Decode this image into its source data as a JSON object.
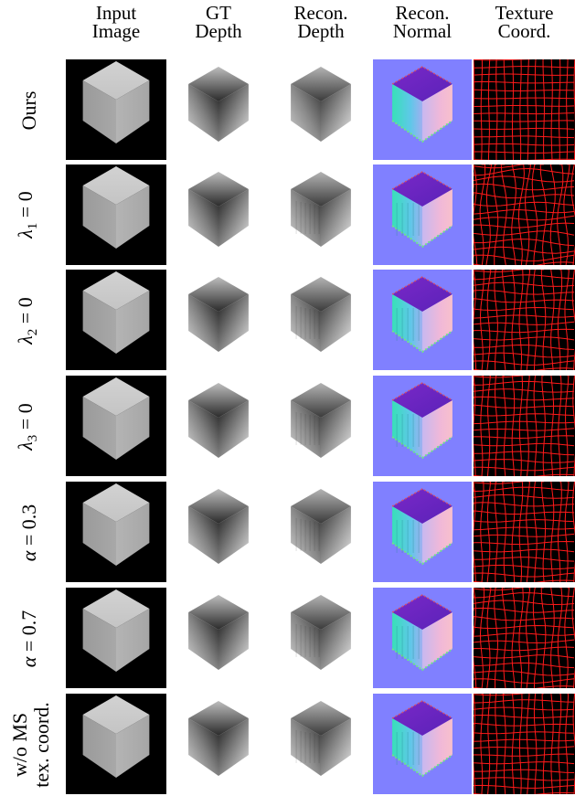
{
  "columns": [
    {
      "line1": "Input",
      "line2": "Image"
    },
    {
      "line1": "GT",
      "line2": "Depth"
    },
    {
      "line1": "Recon.",
      "line2": "Depth"
    },
    {
      "line1": "Recon.",
      "line2": "Normal"
    },
    {
      "line1": "Texture",
      "line2": "Coord."
    }
  ],
  "rows": [
    {
      "label": "Ours"
    },
    {
      "label": "λ1 = 0",
      "sym": "λ",
      "sub": "1",
      "rest": " = 0"
    },
    {
      "label": "λ2 = 0",
      "sym": "λ",
      "sub": "2",
      "rest": " = 0"
    },
    {
      "label": "λ3 = 0",
      "sym": "λ",
      "sub": "3",
      "rest": " = 0"
    },
    {
      "label": "α = 0.3",
      "sym": "α",
      "sub": "",
      "rest": " = 0.3"
    },
    {
      "label": "α = 0.7",
      "sym": "α",
      "sub": "",
      "rest": " = 0.7"
    },
    {
      "label_line1": "w/o MS",
      "label_line2": "tex. coord."
    }
  ],
  "colors": {
    "input_bg": "#000000",
    "normal_bg": "#8080ff",
    "texture_bg": "#000000",
    "texture_grid": "#ff1a1a"
  }
}
